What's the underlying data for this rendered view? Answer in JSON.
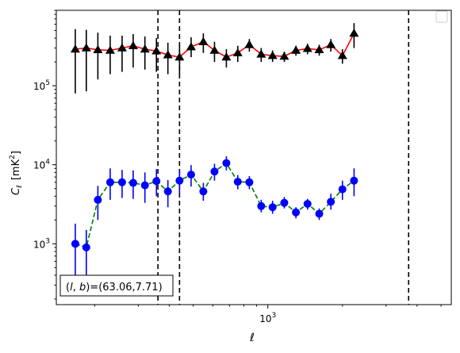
{
  "chart_data": {
    "type": "scatter",
    "xscale": "log",
    "yscale": "log",
    "xlim": [
      140,
      5500
    ],
    "ylim": [
      170,
      900000
    ],
    "xlabel": "ℓ",
    "ylabel_main": "C",
    "ylabel_sub": "ℓ",
    "ylabel_unit_pre": "[mK",
    "ylabel_unit_sup": "2",
    "ylabel_unit_post": "]",
    "xticks": [
      {
        "value": 1000,
        "base": "10",
        "exp": "3"
      }
    ],
    "yticks": [
      {
        "value": 1000,
        "base": "10",
        "exp": "3"
      },
      {
        "value": 10000,
        "base": "10",
        "exp": "4"
      },
      {
        "value": 100000,
        "base": "10",
        "exp": "5"
      }
    ],
    "vlines": [
      360,
      440,
      3700
    ],
    "annotation": "(l, b)=(63.06,7.71)",
    "series": [
      {
        "marker": "triangle",
        "color": "#000000",
        "line_color": "#ff0000",
        "line_style": "solid",
        "points": [
          {
            "x": 167,
            "y": 290000,
            "lo": 80000,
            "hi": 520000
          },
          {
            "x": 185,
            "y": 300000,
            "lo": 85000,
            "hi": 510000
          },
          {
            "x": 206,
            "y": 285000,
            "lo": 120000,
            "hi": 470000
          },
          {
            "x": 231,
            "y": 280000,
            "lo": 140000,
            "hi": 430000
          },
          {
            "x": 258,
            "y": 300000,
            "lo": 150000,
            "hi": 430000
          },
          {
            "x": 286,
            "y": 320000,
            "lo": 170000,
            "hi": 450000
          },
          {
            "x": 319,
            "y": 290000,
            "lo": 160000,
            "hi": 420000
          },
          {
            "x": 355,
            "y": 275000,
            "lo": 150000,
            "hi": 400000
          },
          {
            "x": 395,
            "y": 245000,
            "lo": 140000,
            "hi": 350000
          },
          {
            "x": 440,
            "y": 230000,
            "lo": 140000,
            "hi": 320000
          },
          {
            "x": 490,
            "y": 310000,
            "lo": 230000,
            "hi": 410000
          },
          {
            "x": 549,
            "y": 360000,
            "lo": 260000,
            "hi": 460000
          },
          {
            "x": 609,
            "y": 280000,
            "lo": 200000,
            "hi": 360000
          },
          {
            "x": 680,
            "y": 230000,
            "lo": 170000,
            "hi": 290000
          },
          {
            "x": 756,
            "y": 260000,
            "lo": 200000,
            "hi": 320000
          },
          {
            "x": 842,
            "y": 330000,
            "lo": 270000,
            "hi": 390000
          },
          {
            "x": 940,
            "y": 250000,
            "lo": 200000,
            "hi": 300000
          },
          {
            "x": 1045,
            "y": 240000,
            "lo": 200000,
            "hi": 280000
          },
          {
            "x": 1165,
            "y": 235000,
            "lo": 200000,
            "hi": 270000
          },
          {
            "x": 1298,
            "y": 280000,
            "lo": 240000,
            "hi": 320000
          },
          {
            "x": 1446,
            "y": 295000,
            "lo": 250000,
            "hi": 340000
          },
          {
            "x": 1612,
            "y": 285000,
            "lo": 240000,
            "hi": 330000
          },
          {
            "x": 1796,
            "y": 330000,
            "lo": 270000,
            "hi": 390000
          },
          {
            "x": 2000,
            "y": 240000,
            "lo": 190000,
            "hi": 290000
          },
          {
            "x": 2228,
            "y": 460000,
            "lo": 300000,
            "hi": 620000
          }
        ]
      },
      {
        "marker": "circle",
        "color": "#0000ff",
        "line_color": "#008000",
        "line_style": "dashed",
        "points": [
          {
            "x": 167,
            "y": 1000,
            "lo": 300,
            "hi": 1800
          },
          {
            "x": 185,
            "y": 900,
            "lo": 350,
            "hi": 1500
          },
          {
            "x": 206,
            "y": 3600,
            "lo": 2000,
            "hi": 5400
          },
          {
            "x": 231,
            "y": 6000,
            "lo": 3600,
            "hi": 9000
          },
          {
            "x": 258,
            "y": 6000,
            "lo": 3800,
            "hi": 8600
          },
          {
            "x": 286,
            "y": 5900,
            "lo": 3700,
            "hi": 8500
          },
          {
            "x": 319,
            "y": 5500,
            "lo": 3300,
            "hi": 8000
          },
          {
            "x": 355,
            "y": 6200,
            "lo": 4000,
            "hi": 8800
          },
          {
            "x": 395,
            "y": 4600,
            "lo": 2900,
            "hi": 6400
          },
          {
            "x": 440,
            "y": 6300,
            "lo": 4300,
            "hi": 8600
          },
          {
            "x": 490,
            "y": 7500,
            "lo": 5300,
            "hi": 9900
          },
          {
            "x": 549,
            "y": 4600,
            "lo": 3500,
            "hi": 5900
          },
          {
            "x": 609,
            "y": 8200,
            "lo": 6300,
            "hi": 10300
          },
          {
            "x": 680,
            "y": 10500,
            "lo": 8500,
            "hi": 12800
          },
          {
            "x": 756,
            "y": 6100,
            "lo": 4900,
            "hi": 7400
          },
          {
            "x": 842,
            "y": 6000,
            "lo": 4900,
            "hi": 7200
          },
          {
            "x": 940,
            "y": 3000,
            "lo": 2500,
            "hi": 3600
          },
          {
            "x": 1045,
            "y": 2900,
            "lo": 2400,
            "hi": 3500
          },
          {
            "x": 1165,
            "y": 3300,
            "lo": 2800,
            "hi": 3900
          },
          {
            "x": 1298,
            "y": 2500,
            "lo": 2100,
            "hi": 2900
          },
          {
            "x": 1446,
            "y": 3200,
            "lo": 2700,
            "hi": 3700
          },
          {
            "x": 1612,
            "y": 2400,
            "lo": 2000,
            "hi": 2800
          },
          {
            "x": 1796,
            "y": 3400,
            "lo": 2700,
            "hi": 4300
          },
          {
            "x": 2000,
            "y": 4900,
            "lo": 3600,
            "hi": 6300
          },
          {
            "x": 2228,
            "y": 6300,
            "lo": 4000,
            "hi": 9000
          }
        ]
      }
    ]
  }
}
